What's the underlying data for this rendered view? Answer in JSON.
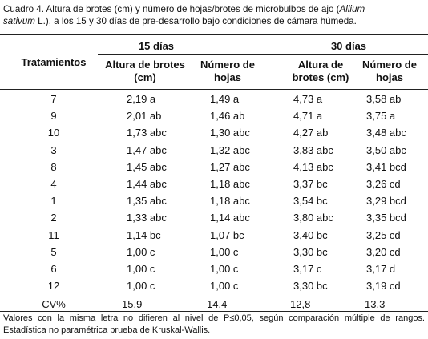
{
  "caption": {
    "line1": [
      "Cuadro 4.  Altura de brotes (cm) y número de hojas/brotes de microbulbos de ajo (",
      "Allium"
    ],
    "line2": [
      "sativum",
      " L.), a los 15 y 30 días de pre-desarrollo bajo condiciones de cámara húmeda."
    ]
  },
  "table": {
    "row_header": "Tratamientos",
    "groups": [
      "15 días",
      "30 días"
    ],
    "columns": [
      "Altura de brotes (cm)",
      "Número de hojas",
      "Altura de brotes (cm)",
      "Número de hojas"
    ],
    "rows": [
      [
        "7",
        "2,19 a",
        "1,49 a",
        "4,73 a",
        "3,58 ab"
      ],
      [
        "9",
        "2,01 ab",
        "1,46 ab",
        "4,71 a",
        "3,75 a"
      ],
      [
        "10",
        "1,73 abc",
        "1,30 abc",
        "4,27 ab",
        "3,48 abc"
      ],
      [
        "3",
        "1,47 abc",
        "1,32 abc",
        "3,83 abc",
        "3,50 abc"
      ],
      [
        "8",
        "1,45 abc",
        "1,27 abc",
        "4,13 abc",
        "3,41 bcd"
      ],
      [
        "4",
        "1,44 abc",
        "1,18 abc",
        "3,37 bc",
        "3,26 cd"
      ],
      [
        "1",
        "1,35 abc",
        "1,18 abc",
        "3,54 bc",
        "3,29 bcd"
      ],
      [
        "2",
        "1,33 abc",
        "1,14 abc",
        "3,80 abc",
        "3,35 bcd"
      ],
      [
        "11",
        "1,14 bc",
        "1,07 bc",
        "3,40 bc",
        "3,25 cd"
      ],
      [
        "5",
        "1,00 c",
        "1,00 c",
        "3,30 bc",
        "3,20 cd"
      ],
      [
        "6",
        "1,00 c",
        "1,00 c",
        "3,17 c",
        "3,17 d"
      ],
      [
        "12",
        "1,00 c",
        "1,00 c",
        "3,30 bc",
        "3,19 cd"
      ]
    ],
    "cv_row": [
      "CV%",
      "15,9",
      "14,4",
      "12,8",
      "13,3"
    ]
  },
  "footnote": "Valores con la misma letra no difieren al nivel de P≤0,05, según comparación múltiple de rangos. Estadística no paramétrica prueba de Kruskal-Wallis."
}
